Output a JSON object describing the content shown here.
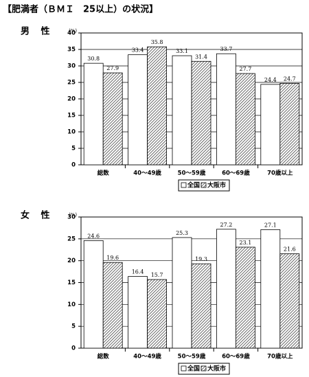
{
  "title": "【肥満者（ＢＭＩ　25以上）の状況】",
  "chart_data": [
    {
      "type": "bar",
      "subtitle": "男 性",
      "y_label": "(%)",
      "categories": [
        "総数",
        "40～49歳",
        "50～59歳",
        "60～69歳",
        "70歳以上"
      ],
      "series": [
        {
          "name": "全国",
          "color": "#ffffff",
          "hatch": false,
          "values": [
            30.8,
            33.4,
            33.1,
            33.7,
            24.4
          ]
        },
        {
          "name": "大阪市",
          "color": "#444444",
          "hatch": true,
          "values": [
            27.9,
            35.8,
            31.4,
            27.7,
            24.7
          ]
        }
      ],
      "ylim": [
        0,
        40
      ],
      "yticks": [
        0,
        5,
        10,
        15,
        20,
        25,
        30,
        35,
        40
      ],
      "grid": true,
      "legend": "bottom"
    },
    {
      "type": "bar",
      "subtitle": "女 性",
      "y_label": "(%)",
      "categories": [
        "総数",
        "40～49歳",
        "50～59歳",
        "60～69歳",
        "70歳以上"
      ],
      "series": [
        {
          "name": "全国",
          "color": "#ffffff",
          "hatch": false,
          "values": [
            24.6,
            16.4,
            25.3,
            27.2,
            27.1
          ]
        },
        {
          "name": "大阪市",
          "color": "#444444",
          "hatch": true,
          "values": [
            19.6,
            15.7,
            19.3,
            23.1,
            21.6
          ]
        }
      ],
      "ylim": [
        0,
        30
      ],
      "yticks": [
        0,
        5,
        10,
        15,
        20,
        25,
        30
      ],
      "grid": true,
      "legend": "bottom"
    }
  ]
}
